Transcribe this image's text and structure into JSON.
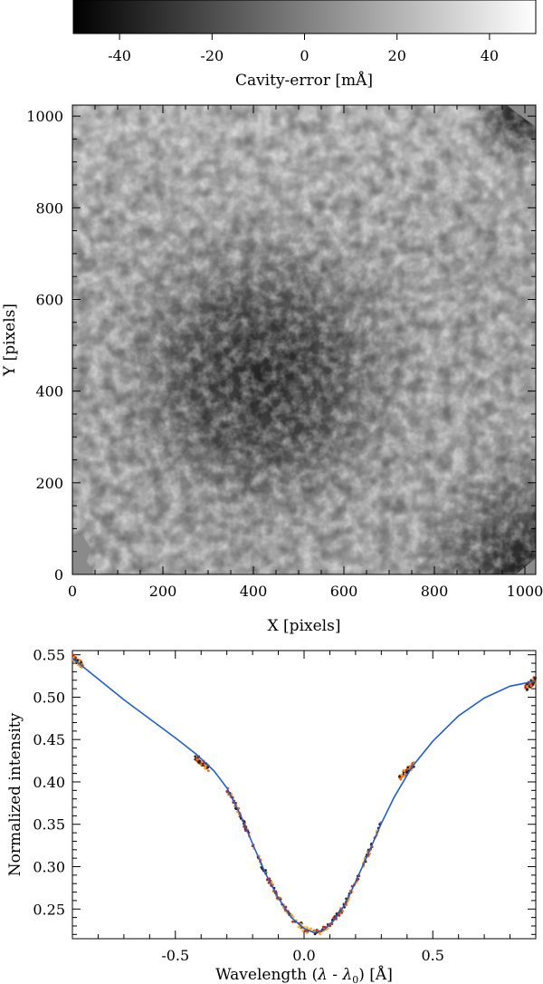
{
  "chart_data": [
    {
      "type": "colorbar",
      "xlabel": "Cavity-error [mÅ]",
      "range": [
        -50,
        50
      ],
      "ticks": [
        -40,
        -20,
        0,
        20,
        40
      ],
      "tick_labels": [
        "-40",
        "-20",
        "0",
        "20",
        "40"
      ],
      "colormap": [
        "#000000",
        "#ffffff"
      ]
    },
    {
      "type": "heatmap",
      "xlabel": "X [pixels]",
      "ylabel": "Y [pixels]",
      "xlim": [
        0,
        1024
      ],
      "ylim": [
        0,
        1024
      ],
      "xticks": [
        0,
        200,
        400,
        600,
        800,
        1000
      ],
      "xtick_labels": [
        "0",
        "200",
        "400",
        "600",
        "800",
        "1000"
      ],
      "yticks": [
        0,
        200,
        400,
        600,
        800,
        1000
      ],
      "ytick_labels": [
        "0",
        "200",
        "400",
        "600",
        "800",
        "1000"
      ],
      "description_levels": {
        "background_mA": 15,
        "central_minimum_mA": -25,
        "central_minimum_xy": [
          420,
          430
        ],
        "bottom_right_corner_mA": -30,
        "top_right_corner_mA": -35
      }
    },
    {
      "type": "line",
      "xlabel": "Wavelength (λ - λ₀) [Å]",
      "ylabel": "Normalized intensity",
      "xlim": [
        -0.9,
        0.9
      ],
      "ylim": [
        0.215,
        0.555
      ],
      "xticks": [
        -0.5,
        0.0,
        0.5
      ],
      "xtick_labels": [
        "-0.5",
        "0.0",
        "0.5"
      ],
      "yticks": [
        0.25,
        0.3,
        0.35,
        0.4,
        0.45,
        0.5,
        0.55
      ],
      "ytick_labels": [
        "0.25",
        "0.30",
        "0.35",
        "0.40",
        "0.45",
        "0.50",
        "0.55"
      ],
      "series": [
        {
          "color": "#1f5fd6",
          "x": [
            -0.9,
            -0.7,
            -0.5,
            -0.42,
            -0.35,
            -0.3,
            -0.25,
            -0.2,
            -0.15,
            -0.1,
            -0.05,
            0.0,
            0.04,
            0.08,
            0.12,
            0.16,
            0.2,
            0.25,
            0.3,
            0.35,
            0.42,
            0.5,
            0.6,
            0.7,
            0.8,
            0.9
          ],
          "y": [
            0.546,
            0.497,
            0.452,
            0.433,
            0.413,
            0.393,
            0.363,
            0.327,
            0.292,
            0.263,
            0.24,
            0.227,
            0.222,
            0.226,
            0.238,
            0.256,
            0.282,
            0.316,
            0.351,
            0.382,
            0.418,
            0.448,
            0.478,
            0.499,
            0.513,
            0.519
          ]
        }
      ],
      "scatter_clusters": [
        {
          "color": "#cc2200",
          "x_range": [
            -0.9,
            -0.86
          ],
          "y_center": 0.542
        },
        {
          "color": "#cc2200",
          "x_range": [
            -0.43,
            -0.37
          ],
          "y_center": 0.424
        },
        {
          "color": "#cc2200",
          "x_range": [
            -0.3,
            0.3
          ],
          "y_center": "on curve"
        },
        {
          "color": "#cc2200",
          "x_range": [
            0.37,
            0.43
          ],
          "y_center": 0.413
        },
        {
          "color": "#cc2200",
          "x_range": [
            0.86,
            0.9
          ],
          "y_center": 0.516
        }
      ]
    }
  ]
}
